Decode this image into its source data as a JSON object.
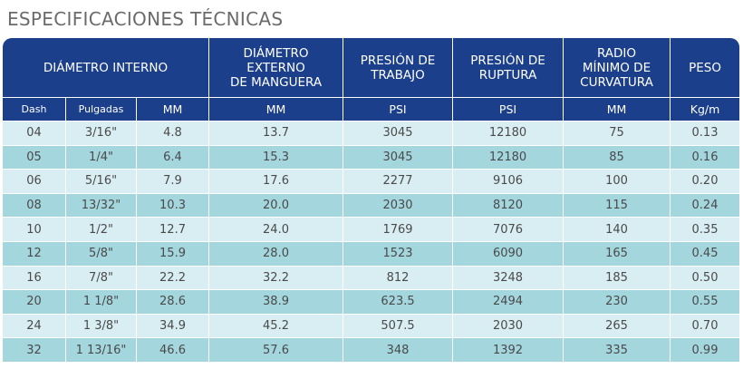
{
  "title": "ESPECIFICACIONES TÉCNICAS",
  "headers": {
    "diametro_interno": "DIÁMETRO INTERNO",
    "diametro_externo": [
      "DIÁMETRO",
      "EXTERNO",
      "DE MANGUERA"
    ],
    "presion_trabajo": [
      "PRESIÓN DE",
      "TRABAJO"
    ],
    "presion_ruptura": [
      "PRESIÓN DE",
      "RUPTURA"
    ],
    "radio": [
      "RADIO",
      "MÍNIMO DE",
      "CURVATURA"
    ],
    "peso": "PESO"
  },
  "units": [
    "Dash",
    "Pulgadas",
    "MM",
    "MM",
    "PSI",
    "PSI",
    "MM",
    "Kg/m"
  ],
  "rows": [
    [
      "04",
      "3/16\"",
      "4.8",
      "13.7",
      "3045",
      "12180",
      "75",
      "0.13"
    ],
    [
      "05",
      "1/4\"",
      "6.4",
      "15.3",
      "3045",
      "12180",
      "85",
      "0.16"
    ],
    [
      "06",
      "5/16\"",
      "7.9",
      "17.6",
      "2277",
      "9106",
      "100",
      "0.20"
    ],
    [
      "08",
      "13/32\"",
      "10.3",
      "20.0",
      "2030",
      "8120",
      "115",
      "0.24"
    ],
    [
      "10",
      "1/2\"",
      "12.7",
      "24.0",
      "1769",
      "7076",
      "140",
      "0.35"
    ],
    [
      "12",
      "5/8\"",
      "15.9",
      "28.0",
      "1523",
      "6090",
      "165",
      "0.45"
    ],
    [
      "16",
      "7/8\"",
      "22.2",
      "32.2",
      "812",
      "3248",
      "185",
      "0.50"
    ],
    [
      "20",
      "1 1/8\"",
      "28.6",
      "38.9",
      "623.5",
      "2494",
      "230",
      "0.55"
    ],
    [
      "24",
      "1 3/8\"",
      "34.9",
      "45.2",
      "507.5",
      "2030",
      "265",
      "0.70"
    ],
    [
      "32",
      "1 13/16\"",
      "46.6",
      "57.6",
      "348",
      "1392",
      "335",
      "0.99"
    ]
  ]
}
